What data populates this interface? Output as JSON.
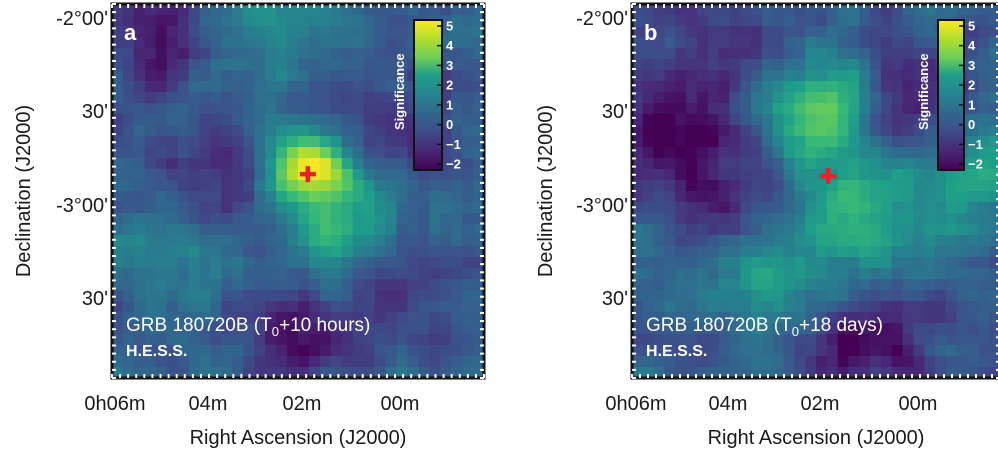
{
  "chart_data": [
    {
      "type": "heatmap",
      "panel_label": "a",
      "caption": {
        "prefix": "GRB 180720B (T",
        "subscript": "0",
        "suffix": "+10 hours)"
      },
      "instrument": "H.E.S.S.",
      "xlabel": "Right Ascension (J2000)",
      "ylabel": "Declination (J2000)",
      "x_ticks": [
        "0h06m",
        "04m",
        "02m",
        "00m"
      ],
      "y_ticks": [
        "-2°00'",
        "30'",
        "-3°00'",
        "30'"
      ],
      "colorbar": {
        "label": "Significance",
        "ticks": [
          "5",
          "4",
          "3",
          "2",
          "1",
          "0",
          "−1",
          "−2"
        ],
        "range": [
          -2.3,
          5.3
        ]
      },
      "marker": {
        "symbol": "cross",
        "color": "#e8202a",
        "ra_min": 2.1,
        "dec_deg": -2.86
      },
      "hotspots": [
        {
          "ra_min": 2.15,
          "dec_deg": -2.83,
          "sigma": 5.0
        },
        {
          "ra_min": 1.0,
          "dec_deg": -2.97,
          "sigma": 2.2
        },
        {
          "ra_min": 3.0,
          "dec_deg": -2.0,
          "sigma": 1.5
        },
        {
          "ra_min": 4.6,
          "dec_deg": -3.25,
          "sigma": 1.2
        },
        {
          "ra_min": 1.6,
          "dec_deg": -3.3,
          "sigma": 1.3
        }
      ],
      "coldspots": [
        {
          "ra_min": 5.2,
          "dec_deg": -2.1,
          "sigma": -1.8
        },
        {
          "ra_min": 0.3,
          "dec_deg": -2.75,
          "sigma": -2.0
        },
        {
          "ra_min": 2.3,
          "dec_deg": -3.72,
          "sigma": -1.9
        },
        {
          "ra_min": 4.0,
          "dec_deg": -2.9,
          "sigma": -1.5
        },
        {
          "ra_min": 0.2,
          "dec_deg": -3.5,
          "sigma": -1.2
        }
      ]
    },
    {
      "type": "heatmap",
      "panel_label": "b",
      "caption": {
        "prefix": "GRB 180720B (T",
        "subscript": "0",
        "suffix": "+18 days)"
      },
      "instrument": "H.E.S.S.",
      "xlabel": "Right Ascension (J2000)",
      "ylabel": "Declination (J2000)",
      "x_ticks": [
        "0h06m",
        "04m",
        "02m",
        "00m"
      ],
      "y_ticks": [
        "-2°00'",
        "30'",
        "-3°00'",
        "30'"
      ],
      "colorbar": {
        "label": "Significance",
        "ticks": [
          "5",
          "4",
          "3",
          "2",
          "1",
          "0",
          "−1",
          "−2"
        ],
        "range": [
          -2.3,
          5.3
        ]
      },
      "marker": {
        "symbol": "cross",
        "color": "#e8202a",
        "ra_min": 2.05,
        "dec_deg": -2.87
      },
      "hotspots": [
        {
          "ra_min": 2.3,
          "dec_deg": -2.55,
          "sigma": 2.5
        },
        {
          "ra_min": 1.4,
          "dec_deg": -3.15,
          "sigma": 2.8
        },
        {
          "ra_min": 3.3,
          "dec_deg": -3.4,
          "sigma": 1.6
        },
        {
          "ra_min": -0.9,
          "dec_deg": -2.9,
          "sigma": 2.2
        },
        {
          "ra_min": 1.6,
          "dec_deg": -2.45,
          "sigma": 1.6
        }
      ],
      "coldspots": [
        {
          "ra_min": 5.3,
          "dec_deg": -2.6,
          "sigma": -2.2
        },
        {
          "ra_min": 0.6,
          "dec_deg": -2.45,
          "sigma": -2.3
        },
        {
          "ra_min": 1.3,
          "dec_deg": -3.72,
          "sigma": -2.3
        },
        {
          "ra_min": 4.2,
          "dec_deg": -2.95,
          "sigma": -1.6
        },
        {
          "ra_min": 3.8,
          "dec_deg": -2.1,
          "sigma": -1.3
        }
      ]
    }
  ]
}
